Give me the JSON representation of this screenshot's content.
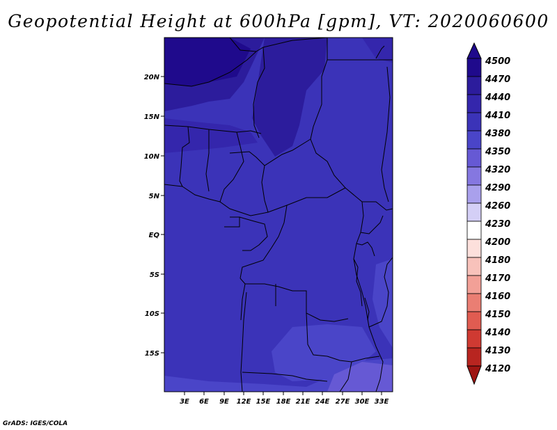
{
  "title": "Geopotential Height at 600hPa [gpm], VT: 2020060600",
  "credit": "GrADS: IGES/COLA",
  "map": {
    "lat_ticks": [
      "20N",
      "15N",
      "10N",
      "5N",
      "EQ",
      "5S",
      "10S",
      "15S"
    ],
    "lon_ticks": [
      "3E",
      "6E",
      "9E",
      "12E",
      "15E",
      "18E",
      "21E",
      "24E",
      "27E",
      "30E",
      "33E"
    ],
    "lon_range": [
      0,
      34
    ],
    "lat_range": [
      -20,
      24
    ],
    "background_color": "#3a30b8"
  },
  "colorbar": {
    "levels": [
      "4500",
      "4470",
      "4440",
      "4410",
      "4380",
      "4350",
      "4320",
      "4290",
      "4260",
      "4230",
      "4200",
      "4180",
      "4170",
      "4160",
      "4150",
      "4140",
      "4130",
      "4120"
    ],
    "colors": [
      "#1f0a8c",
      "#2c1c9c",
      "#3426ac",
      "#3b33b8",
      "#4a45c8",
      "#6659d4",
      "#8577e0",
      "#a9a0ec",
      "#d4cff6",
      "#ffffff",
      "#fde0dc",
      "#f8c2bb",
      "#f2a097",
      "#ea7e73",
      "#e05c51",
      "#cf3a32",
      "#b82520",
      "#9e1512"
    ]
  }
}
